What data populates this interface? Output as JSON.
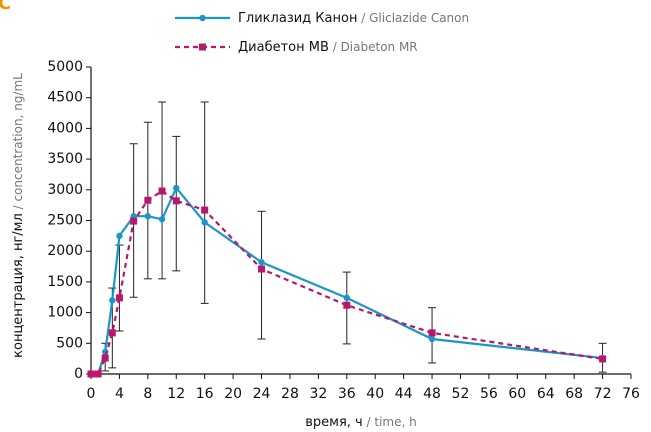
{
  "chart_data": {
    "type": "line",
    "corner_mark": "C",
    "label_separator": " / ",
    "xlabel": "время, ч",
    "xlabel_en": "time, h",
    "ylabel": "концентрация, нг/мл",
    "ylabel_en": "concentration, ng/mL",
    "x": [
      0,
      1,
      2,
      3,
      4,
      6,
      8,
      10,
      12,
      16,
      24,
      36,
      48,
      72
    ],
    "series": [
      {
        "name": "Гликлазид Канон",
        "name_en": "Gliclazide Canon",
        "color": "#1b96c8",
        "style": "solid",
        "marker": "circle",
        "values": [
          0,
          0,
          360,
          1200,
          2250,
          2570,
          2570,
          2520,
          3030,
          2470,
          1820,
          1240,
          570,
          260
        ]
      },
      {
        "name": "Диабетон МВ",
        "name_en": "Diabeton MR",
        "color": "#b8176e",
        "style": "dashed",
        "marker": "square",
        "values": [
          0,
          0,
          260,
          670,
          1240,
          2490,
          2830,
          2980,
          2820,
          2670,
          1710,
          1120,
          670,
          245
        ]
      }
    ],
    "error_bars": {
      "x": [
        2,
        3,
        4,
        6,
        8,
        10,
        12,
        16,
        24,
        36,
        48,
        72
      ],
      "low": [
        50,
        100,
        700,
        1250,
        1550,
        1550,
        1680,
        1150,
        570,
        490,
        180,
        30
      ],
      "high": [
        500,
        1400,
        2100,
        3750,
        4100,
        4430,
        3870,
        4430,
        2650,
        1660,
        1080,
        500
      ]
    },
    "xlim": [
      0,
      76
    ],
    "xticks": [
      0,
      4,
      8,
      12,
      16,
      20,
      24,
      28,
      32,
      36,
      40,
      44,
      48,
      52,
      56,
      60,
      64,
      68,
      72,
      76
    ],
    "ylim": [
      0,
      5000
    ],
    "yticks": [
      0,
      500,
      1000,
      1500,
      2000,
      2500,
      3000,
      3500,
      4000,
      4500,
      5000
    ]
  }
}
